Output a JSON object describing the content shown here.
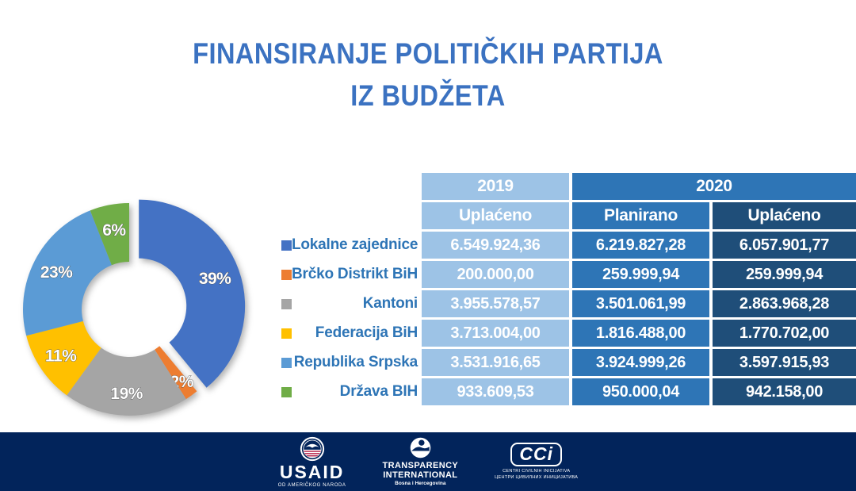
{
  "title": {
    "line1": "FINANSIRANJE POLITIČKIH PARTIJA",
    "line2": "IZ BUDŽETA"
  },
  "palette": {
    "title_blue": "#3B72C1",
    "label_blue": "#2E75B6",
    "cell_light_blue": "#9DC3E6",
    "cell_mid_blue": "#2E75B6",
    "cell_dark_blue": "#1F4E79",
    "footer_navy": "#02245B",
    "usaid_red": "#B31942"
  },
  "chart_data": {
    "type": "pie",
    "donut": true,
    "direction": "clockwise",
    "start_angle_deg": 0,
    "exploded_index": 0,
    "hole_radius_ratio": 0.45,
    "legend_position": "right",
    "categories": [
      "Lokalne zajednice",
      "Brčko Distrikt BiH",
      "Kantoni",
      "Federacija BiH",
      "Republika Srpska",
      "Država BIH"
    ],
    "values": [
      39,
      2,
      19,
      11,
      23,
      6
    ],
    "labels": [
      "39%",
      "2%",
      "19%",
      "11%",
      "23%",
      "6%"
    ],
    "colors": [
      "#4472C4",
      "#ED7D31",
      "#A5A5A5",
      "#FFC000",
      "#5B9BD5",
      "#70AD47"
    ],
    "label_radius_factors": [
      0.76,
      0.84,
      0.79,
      0.78,
      0.77,
      0.76
    ]
  },
  "table": {
    "col_groups": [
      {
        "label": "2019",
        "span": 1
      },
      {
        "label": "2020",
        "span": 2
      }
    ],
    "sub_headers": [
      "Uplaćeno",
      "Planirano",
      "Uplaćeno"
    ],
    "rows": [
      {
        "label": "Lokalne zajednice",
        "color": "#4472C4",
        "values": [
          "6.549.924,36",
          "6.219.827,28",
          "6.057.901,77"
        ]
      },
      {
        "label": "Brčko Distrikt BiH",
        "color": "#ED7D31",
        "values": [
          "200.000,00",
          "259.999,94",
          "259.999,94"
        ]
      },
      {
        "label": "Kantoni",
        "color": "#A5A5A5",
        "values": [
          "3.955.578,57",
          "3.501.061,99",
          "2.863.968,28"
        ]
      },
      {
        "label": "Federacija BiH",
        "color": "#FFC000",
        "values": [
          "3.713.004,00",
          "1.816.488,00",
          "1.770.702,00"
        ]
      },
      {
        "label": "Republika Srpska",
        "color": "#5B9BD5",
        "values": [
          "3.531.916,65",
          "3.924.999,26",
          "3.597.915,93"
        ]
      },
      {
        "label": "Država BIH",
        "color": "#70AD47",
        "values": [
          "933.609,53",
          "950.000,04",
          "942.158,00"
        ]
      }
    ]
  },
  "footer": {
    "usaid": {
      "name": "USAID",
      "subtitle": "OD AMERIČKOG NARODA"
    },
    "transparency": {
      "line1": "TRANSPARENCY",
      "line2": "INTERNATIONAL",
      "subtitle": "Bosna i Hercegovina"
    },
    "cci": {
      "abbr": "CCi",
      "line1": "CENTRI CIVILNIH INICIJATIVA",
      "line2": "ЦЕНТРИ ЦИВИЛНИХ ИНИЦИЈАТИВА"
    }
  }
}
